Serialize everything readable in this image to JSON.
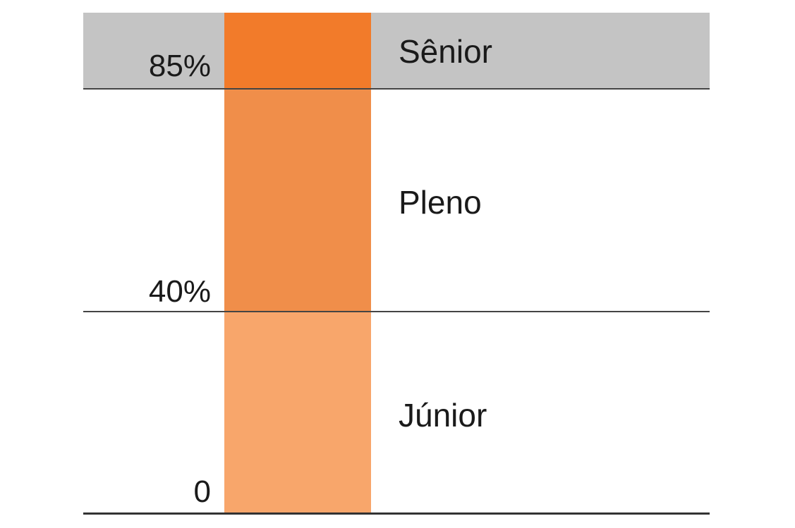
{
  "levels": [
    {
      "name": "Sênior",
      "threshold": "85%",
      "band_color": "#c4c4c4",
      "column_color": "#f27b2a"
    },
    {
      "name": "Pleno",
      "threshold": "40%",
      "band_color": "#ffffff",
      "column_color": "#f08e4a"
    },
    {
      "name": "Júnior",
      "threshold": "0",
      "band_color": "#ffffff",
      "column_color": "#f8a66b"
    }
  ],
  "colors": {
    "divider": "#444444",
    "text": "#1a1a1a"
  }
}
